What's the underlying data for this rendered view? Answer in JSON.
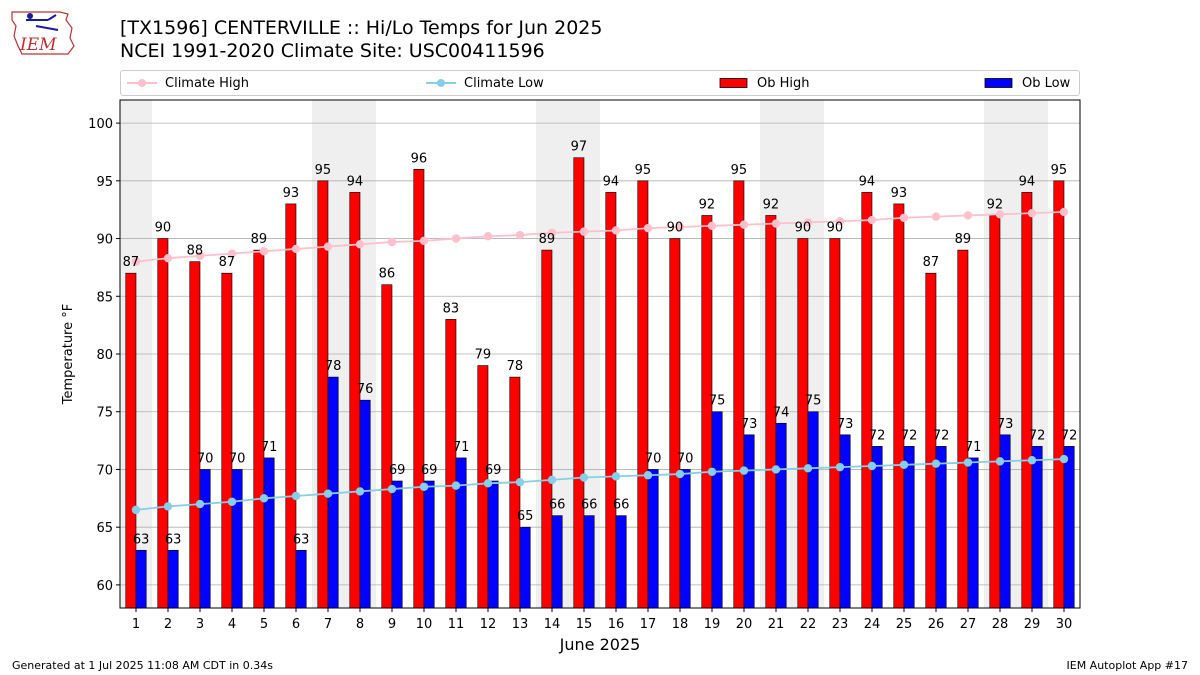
{
  "header": {
    "logo_text": "IEM",
    "title": "[TX1596] CENTERVILLE :: Hi/Lo Temps for Jun 2025",
    "subtitle": "NCEI 1991-2020 Climate Site: USC00411596"
  },
  "legend": {
    "climate_high": "Climate High",
    "climate_low": "Climate Low",
    "ob_high": "Ob High",
    "ob_low": "Ob Low"
  },
  "footer": {
    "generated": "Generated at 1 Jul 2025 11:08 AM CDT in 0.34s",
    "app": "IEM Autoplot App #17"
  },
  "colors": {
    "ob_high": "#ff0000",
    "ob_low": "#0000ff",
    "climate_high": "#ffc0cb",
    "climate_low": "#87ceeb",
    "weekend_shade": "#efefef",
    "grid": "#b0b0b0"
  },
  "chart_data": {
    "type": "bar",
    "xlabel": "June 2025",
    "ylabel": "Temperature °F",
    "ylim": [
      58,
      102
    ],
    "yticks": [
      60,
      65,
      70,
      75,
      80,
      85,
      90,
      95,
      100
    ],
    "grid": true,
    "legend_position": "top",
    "categories": [
      "1",
      "2",
      "3",
      "4",
      "5",
      "6",
      "7",
      "8",
      "9",
      "10",
      "11",
      "12",
      "13",
      "14",
      "15",
      "16",
      "17",
      "18",
      "19",
      "20",
      "21",
      "22",
      "23",
      "24",
      "25",
      "26",
      "27",
      "28",
      "29",
      "30"
    ],
    "shaded_days": [
      1,
      7,
      8,
      14,
      15,
      21,
      22,
      28,
      29
    ],
    "series": [
      {
        "name": "Ob High",
        "kind": "bar",
        "values": [
          87,
          90,
          88,
          87,
          89,
          93,
          95,
          94,
          86,
          96,
          83,
          79,
          78,
          89,
          97,
          94,
          95,
          90,
          92,
          95,
          92,
          90,
          90,
          94,
          93,
          87,
          89,
          92,
          94,
          95
        ]
      },
      {
        "name": "Ob Low",
        "kind": "bar",
        "values": [
          63,
          63,
          70,
          70,
          71,
          63,
          78,
          76,
          69,
          69,
          71,
          69,
          65,
          66,
          66,
          66,
          70,
          70,
          75,
          73,
          74,
          75,
          73,
          72,
          72,
          72,
          71,
          73,
          72,
          72
        ]
      },
      {
        "name": "Climate High",
        "kind": "line",
        "values": [
          88.0,
          88.3,
          88.5,
          88.7,
          88.9,
          89.1,
          89.3,
          89.5,
          89.7,
          89.8,
          90.0,
          90.2,
          90.3,
          90.5,
          90.6,
          90.7,
          90.9,
          91.0,
          91.1,
          91.2,
          91.3,
          91.4,
          91.5,
          91.6,
          91.8,
          91.9,
          92.0,
          92.1,
          92.2,
          92.3
        ]
      },
      {
        "name": "Climate Low",
        "kind": "line",
        "values": [
          66.5,
          66.8,
          67.0,
          67.2,
          67.5,
          67.7,
          67.9,
          68.1,
          68.3,
          68.5,
          68.6,
          68.8,
          68.9,
          69.1,
          69.3,
          69.4,
          69.5,
          69.6,
          69.8,
          69.9,
          70.0,
          70.1,
          70.2,
          70.3,
          70.4,
          70.5,
          70.6,
          70.7,
          70.8,
          70.9
        ]
      }
    ]
  }
}
